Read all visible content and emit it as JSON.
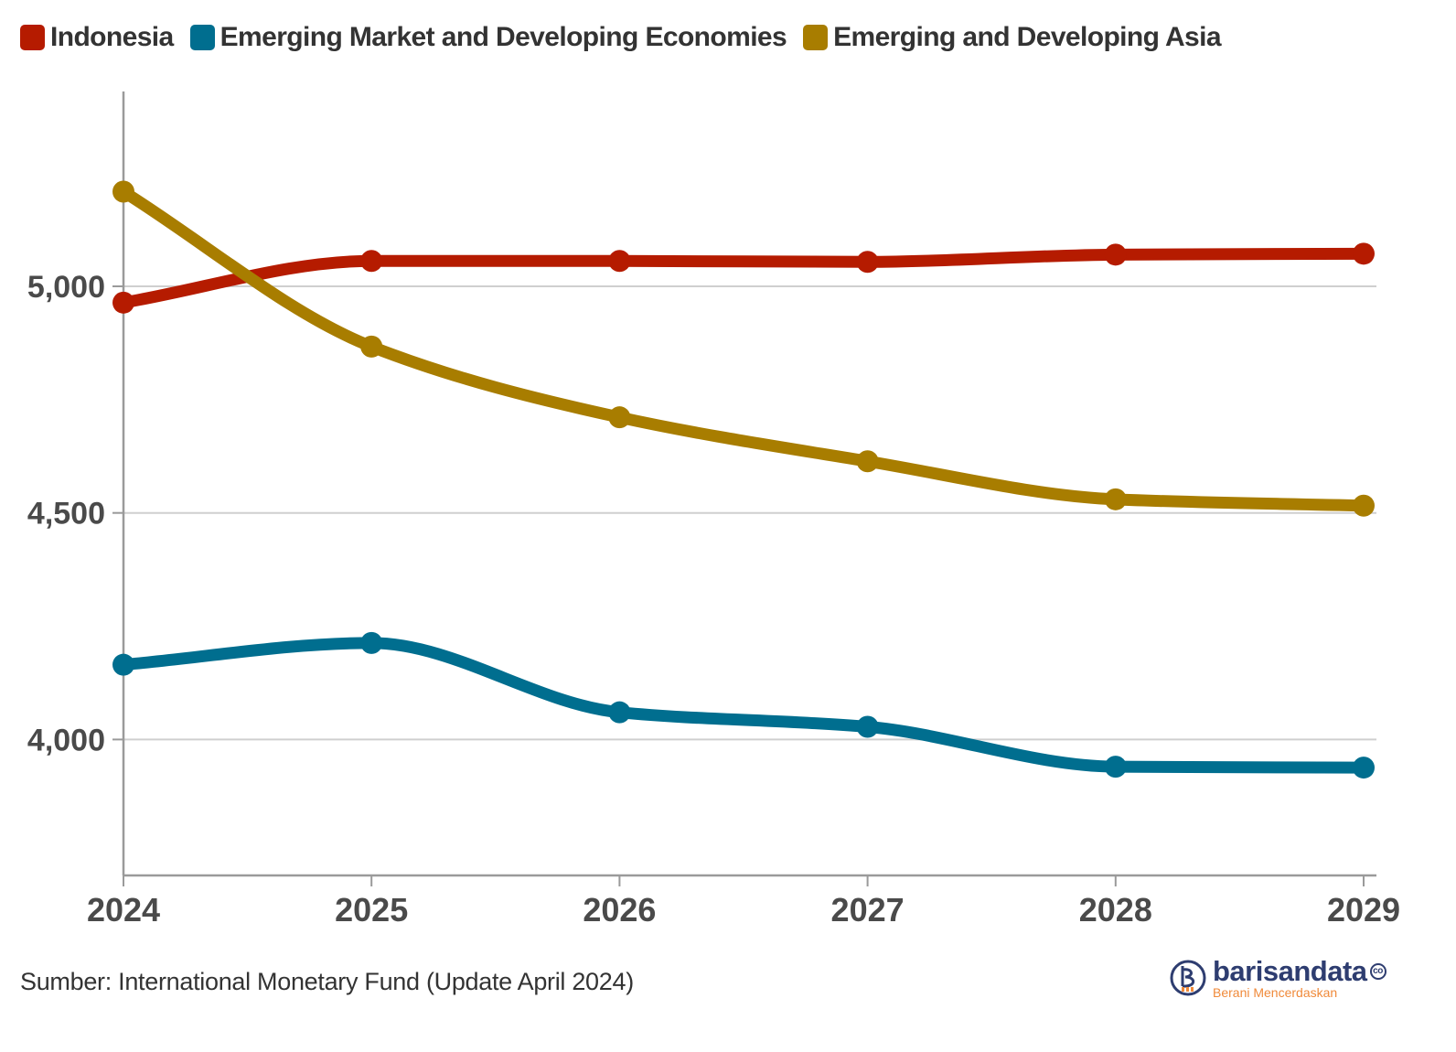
{
  "legend": [
    {
      "label": "Indonesia",
      "color": "#b51b00"
    },
    {
      "label": "Emerging Market and Developing Economies",
      "color": "#006e8f"
    },
    {
      "label": "Emerging and Developing Asia",
      "color": "#a87d00"
    }
  ],
  "source": "Sumber: International Monetary Fund (Update April 2024)",
  "logo": {
    "name": "barisandata",
    "suffix": "co",
    "tagline": "Berani Mencerdaskan",
    "icon": "barisandata-logo-icon"
  },
  "chart_data": {
    "type": "line",
    "title": "",
    "xlabel": "",
    "ylabel": "",
    "x": [
      "2024",
      "2025",
      "2026",
      "2027",
      "2028",
      "2029"
    ],
    "ylim": [
      3700,
      5430
    ],
    "yticks": [
      4000,
      4500,
      5000
    ],
    "ytick_labels": [
      "4,000",
      "4,500",
      "5,000"
    ],
    "grid": true,
    "legend_position": "top-left",
    "smooth": true,
    "series": [
      {
        "name": "Indonesia",
        "color": "#b51b00",
        "values": [
          4964,
          5056,
          5056,
          5054,
          5070,
          5072
        ]
      },
      {
        "name": "Emerging Market and Developing Economies",
        "color": "#006e8f",
        "values": [
          4165,
          4213,
          4060,
          4028,
          3940,
          3938
        ]
      },
      {
        "name": "Emerging and Developing Asia",
        "color": "#a87d00",
        "values": [
          5209,
          4867,
          4711,
          4614,
          4530,
          4516
        ]
      }
    ]
  }
}
